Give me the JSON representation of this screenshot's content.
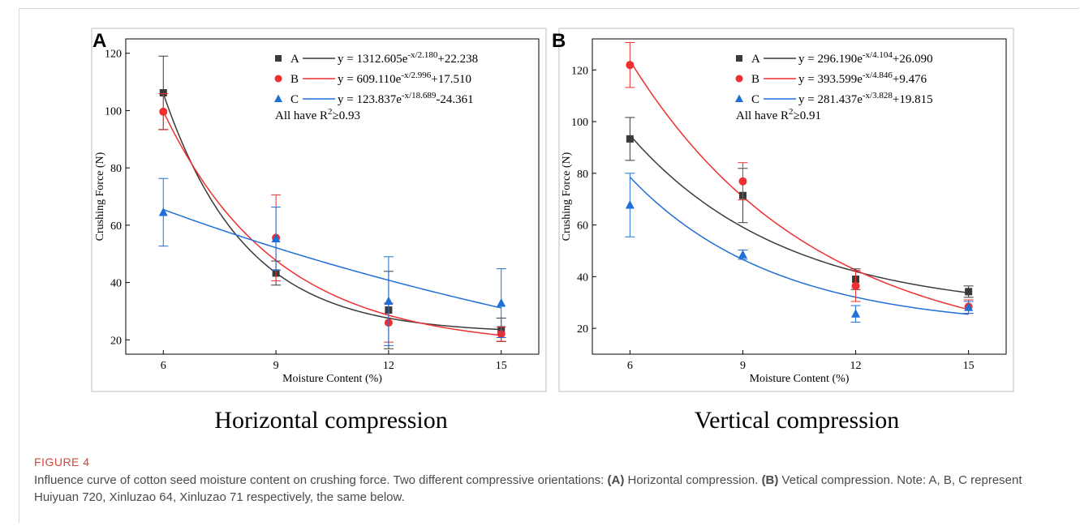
{
  "figure": {
    "label": "FIGURE 4",
    "caption_parts": [
      {
        "text": "Influence curve of cotton seed moisture content on crushing force. Two different compressive orientations: ",
        "bold": false
      },
      {
        "text": "(A)",
        "bold": true
      },
      {
        "text": " Horizontal compression. ",
        "bold": false
      },
      {
        "text": "(B)",
        "bold": true
      },
      {
        "text": " Vetical compression. Note: A, B, C represent Huiyuan 720, Xinluzao 64, Xinluzao 71 respectively, the same below.",
        "bold": false
      }
    ]
  },
  "colors": {
    "A": "#3a3a3a",
    "B": "#ef2f2f",
    "C": "#1f6fd8"
  },
  "chart_data": [
    {
      "panel": "A",
      "type": "scatter",
      "title": "Horizontal compression",
      "xlabel": "Moisture Content (%)",
      "ylabel": "Crushing Force (N)",
      "x_ticks": [
        6,
        9,
        12,
        15
      ],
      "y_ticks": [
        20,
        40,
        60,
        80,
        100,
        120
      ],
      "xlim": [
        5,
        16
      ],
      "ylim": [
        15,
        125
      ],
      "series": [
        {
          "name": "A",
          "marker": "square",
          "x": [
            6,
            9,
            12,
            15
          ],
          "y": [
            106.2,
            43.3,
            30.4,
            23.5
          ],
          "err": [
            12.8,
            4.2,
            13.5,
            4.1
          ],
          "fit": {
            "a": 1312.605,
            "t": 2.18,
            "c": 22.238
          },
          "eq_base": "y = 1312.605e",
          "eq_exp": "-x/2.180",
          "eq_tail": "+22.238"
        },
        {
          "name": "B",
          "marker": "circle",
          "x": [
            6,
            9,
            12,
            15
          ],
          "y": [
            99.6,
            55.6,
            26.0,
            22.0
          ],
          "err": [
            6.3,
            15.0,
            6.8,
            2.5
          ],
          "fit": {
            "a": 609.11,
            "t": 2.996,
            "c": 17.51
          },
          "eq_base": "y = 609.110e",
          "eq_exp": "-x/2.996",
          "eq_tail": "+17.510"
        },
        {
          "name": "C",
          "marker": "triangle",
          "x": [
            6,
            9,
            12,
            15
          ],
          "y": [
            64.5,
            55.3,
            33.5,
            32.8
          ],
          "err": [
            11.8,
            11.0,
            15.5,
            12.0
          ],
          "fit": {
            "a": 123.837,
            "t": 18.689,
            "c": -24.361
          },
          "eq_base": "y = 123.837e",
          "eq_exp": "-x/18.689",
          "eq_tail": "-24.361"
        }
      ],
      "note_base": "All have R",
      "note_sup": "2",
      "note_tail": "≥0.93"
    },
    {
      "panel": "B",
      "type": "scatter",
      "title": "Vertical compression",
      "xlabel": "Moisture Content (%)",
      "ylabel": "Crushing Force (N)",
      "x_ticks": [
        6,
        9,
        12,
        15
      ],
      "y_ticks": [
        20,
        40,
        60,
        80,
        100,
        120
      ],
      "xlim": [
        5,
        16
      ],
      "ylim": [
        10,
        132
      ],
      "series": [
        {
          "name": "A",
          "marker": "square",
          "x": [
            6,
            9,
            12,
            15
          ],
          "y": [
            93.3,
            71.4,
            39.0,
            34.2
          ],
          "err": [
            8.3,
            10.5,
            4.0,
            2.2
          ],
          "fit": {
            "a": 296.19,
            "t": 4.104,
            "c": 26.09
          },
          "eq_base": "y = 296.190e",
          "eq_exp": "-x/4.104",
          "eq_tail": "+26.090"
        },
        {
          "name": "B",
          "marker": "circle",
          "x": [
            6,
            9,
            12,
            15
          ],
          "y": [
            121.9,
            76.9,
            36.4,
            28.4
          ],
          "err": [
            8.7,
            7.2,
            6.0,
            2.6
          ],
          "fit": {
            "a": 393.599,
            "t": 4.846,
            "c": 9.476
          },
          "eq_base": "y = 393.599e",
          "eq_exp": "-x/4.846",
          "eq_tail": "+9.476"
        },
        {
          "name": "C",
          "marker": "triangle",
          "x": [
            6,
            9,
            12,
            15
          ],
          "y": [
            67.7,
            48.5,
            25.6,
            28.1
          ],
          "err": [
            12.3,
            1.8,
            3.2,
            2.3
          ],
          "fit": {
            "a": 281.437,
            "t": 3.828,
            "c": 19.815
          },
          "eq_base": "y = 281.437e",
          "eq_exp": "-x/3.828",
          "eq_tail": "+19.815"
        }
      ],
      "note_base": "All have R",
      "note_sup": "2",
      "note_tail": "≥0.91"
    }
  ]
}
